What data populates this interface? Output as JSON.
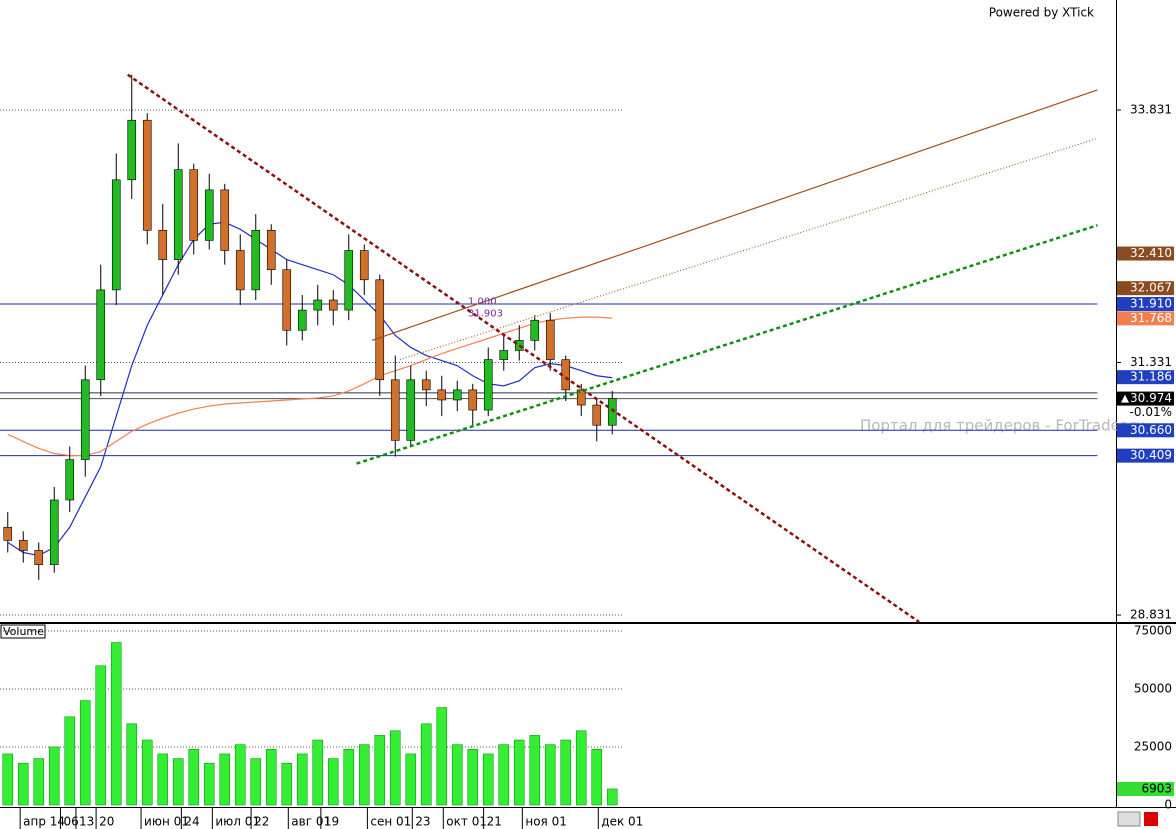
{
  "chart_data": {
    "type": "candlestick",
    "brand": "Powered by XTick",
    "watermark": "Портал для трейдеров - ForTrader.ru",
    "xlim": [
      -0.5,
      71.5
    ],
    "ylim": [
      28.762,
      34.92
    ],
    "yticks": [
      28.831,
      31.331,
      33.831
    ],
    "xticks": [
      {
        "value": 0.8,
        "label": "апр 14"
      },
      {
        "value": 3.4,
        "label": "06"
      },
      {
        "value": 4.4,
        "label": "13"
      },
      {
        "value": 5.7,
        "label": "20"
      },
      {
        "value": 8.6,
        "label": "июн 01"
      },
      {
        "value": 11.2,
        "label": "24"
      },
      {
        "value": 13.2,
        "label": "июл 01"
      },
      {
        "value": 15.7,
        "label": "22"
      },
      {
        "value": 18.1,
        "label": "авг 01"
      },
      {
        "value": 20.2,
        "label": "19"
      },
      {
        "value": 23.2,
        "label": "сен 01"
      },
      {
        "value": 26.1,
        "label": "23"
      },
      {
        "value": 28.1,
        "label": "окт 01"
      },
      {
        "value": 30.7,
        "label": "21"
      },
      {
        "value": 33.2,
        "label": "ноя 01"
      },
      {
        "value": 38.1,
        "label": "дек 01"
      }
    ],
    "up_color": "#22bb22",
    "down_color": "#d0702a",
    "open": [
      29.7,
      29.57,
      29.47,
      29.33,
      29.97,
      30.37,
      31.16,
      32.05,
      33.14,
      33.73,
      32.64,
      32.35,
      33.24,
      32.54,
      33.04,
      32.44,
      32.05,
      32.64,
      32.25,
      31.65,
      31.85,
      31.95,
      31.85,
      32.44,
      32.15,
      31.16,
      30.56,
      31.16,
      31.06,
      30.96,
      31.06,
      30.86,
      31.36,
      31.45,
      31.55,
      31.75,
      31.36,
      31.06,
      30.91,
      30.71
    ],
    "high": [
      29.85,
      29.66,
      29.55,
      30.1,
      30.5,
      31.3,
      32.3,
      33.4,
      34.18,
      33.8,
      32.9,
      33.5,
      33.3,
      33.2,
      33.1,
      32.6,
      32.8,
      32.7,
      32.35,
      32.0,
      32.1,
      32.05,
      32.6,
      32.5,
      32.2,
      31.4,
      31.3,
      31.25,
      31.2,
      31.15,
      31.12,
      31.48,
      31.6,
      31.7,
      31.8,
      31.82,
      31.4,
      31.12,
      30.98,
      31.05
    ],
    "low": [
      29.45,
      29.35,
      29.18,
      29.25,
      29.85,
      30.2,
      31.0,
      31.9,
      32.95,
      32.5,
      32.0,
      32.2,
      32.4,
      32.45,
      32.3,
      31.9,
      31.95,
      32.1,
      31.5,
      31.55,
      31.7,
      31.7,
      31.75,
      32.0,
      31.0,
      30.4,
      30.5,
      30.9,
      30.8,
      30.85,
      30.7,
      30.8,
      31.25,
      31.35,
      31.45,
      31.25,
      30.95,
      30.8,
      30.55,
      30.62
    ],
    "close": [
      29.57,
      29.47,
      29.33,
      29.97,
      30.37,
      31.16,
      32.05,
      33.14,
      33.73,
      32.64,
      32.35,
      33.24,
      32.54,
      33.04,
      32.44,
      32.05,
      32.64,
      32.25,
      31.65,
      31.85,
      31.95,
      31.85,
      32.44,
      32.15,
      31.16,
      30.56,
      31.16,
      31.06,
      30.96,
      31.06,
      30.86,
      31.36,
      31.45,
      31.55,
      31.75,
      31.36,
      31.06,
      30.91,
      30.71,
      30.974
    ],
    "series": [
      {
        "color": "#2030c0",
        "values": [
          29.55,
          29.45,
          29.42,
          29.5,
          29.7,
          30.0,
          30.3,
          30.8,
          31.3,
          31.7,
          32.0,
          32.3,
          32.55,
          32.7,
          32.72,
          32.65,
          32.55,
          32.45,
          32.35,
          32.3,
          32.25,
          32.2,
          32.1,
          31.95,
          31.8,
          31.6,
          31.48,
          31.4,
          31.35,
          31.3,
          31.2,
          31.12,
          31.1,
          31.15,
          31.28,
          31.32,
          31.3,
          31.25,
          31.2,
          31.18
        ]
      },
      {
        "color": "#f08050",
        "values": [
          30.62,
          30.55,
          30.48,
          30.43,
          30.41,
          30.41,
          30.45,
          30.55,
          30.65,
          30.72,
          30.78,
          30.83,
          30.87,
          30.9,
          30.92,
          30.93,
          30.94,
          30.95,
          30.96,
          30.97,
          30.98,
          31.0,
          31.05,
          31.12,
          31.2,
          31.25,
          31.3,
          31.36,
          31.42,
          31.47,
          31.52,
          31.57,
          31.62,
          31.67,
          31.72,
          31.75,
          31.77,
          31.78,
          31.78,
          31.77
        ]
      }
    ],
    "trendlines": [
      {
        "start": [
          7.74,
          34.18
        ],
        "end": [
          58.8,
          28.762
        ],
        "color": "#8b1010",
        "dash": "4,3",
        "width": 2.5
      },
      {
        "start": [
          22.5,
          30.33
        ],
        "end": [
          70.3,
          32.69
        ],
        "color": "#109010",
        "dash": "4,3",
        "width": 2.5
      },
      {
        "start": [
          23.5,
          31.55
        ],
        "end": [
          70.3,
          34.03
        ],
        "color": "#9a5020",
        "dash": "",
        "width": 1.2
      },
      {
        "start": [
          25.3,
          31.36
        ],
        "end": [
          70.3,
          33.55
        ],
        "color": "#b06030",
        "dash": "1,2",
        "width": 1.2
      }
    ],
    "hlines": [
      {
        "value": 31.91,
        "color": "#1f2f9f"
      },
      {
        "value": 31.03,
        "color": "#303050"
      },
      {
        "value": 30.974,
        "color": "#505050"
      },
      {
        "value": 30.66,
        "color": "#1f2f9f"
      },
      {
        "value": 30.409,
        "color": "#1f2f9f"
      }
    ],
    "hline_end": 70.3,
    "level_annotation": {
      "ratio": "1.000",
      "price": {
        "value": 31.903,
        "label": "31.903"
      }
    },
    "price_tags": [
      {
        "value": 32.41,
        "label": "32.410",
        "color": "#8b4a1f",
        "text": "#ffffff"
      },
      {
        "value": 32.067,
        "label": "32.067",
        "color": "#8b4a1f",
        "text": "#ffffff"
      },
      {
        "value": 31.91,
        "label": "31.910",
        "color": "#1f3fbf",
        "text": "#ffffff"
      },
      {
        "value": 31.768,
        "label": "31.768",
        "color": "#f08050",
        "text": "#ffffff"
      },
      {
        "value": 31.186,
        "label": "31.186",
        "color": "#1f3fbf",
        "text": "#ffffff"
      },
      {
        "value": 30.974,
        "label": "30.974",
        "color": "#000000",
        "text": "#ffffff"
      },
      {
        "value": 30.66,
        "label": "30.660",
        "color": "#1f3fbf",
        "text": "#ffffff"
      },
      {
        "value": 30.409,
        "label": "30.409",
        "color": "#1f3fbf",
        "text": "#ffffff"
      }
    ],
    "change": {
      "value": -0.01,
      "label": "-0.01%"
    },
    "volume": {
      "title": "Volume",
      "color": "#33ee33",
      "ylim": [
        0,
        78000
      ],
      "yticks": [
        0,
        25000,
        50000,
        75000
      ],
      "values": [
        22000,
        18000,
        20000,
        25000,
        38000,
        45000,
        60000,
        70000,
        35000,
        28000,
        22000,
        20000,
        24000,
        18000,
        22000,
        26000,
        20000,
        24000,
        18000,
        22000,
        28000,
        20000,
        24000,
        26000,
        30000,
        32000,
        22000,
        35000,
        42000,
        26000,
        24000,
        22000,
        26000,
        28000,
        30000,
        26000,
        28000,
        32000,
        24000,
        6903
      ],
      "tag_color": "#33dd33"
    }
  }
}
